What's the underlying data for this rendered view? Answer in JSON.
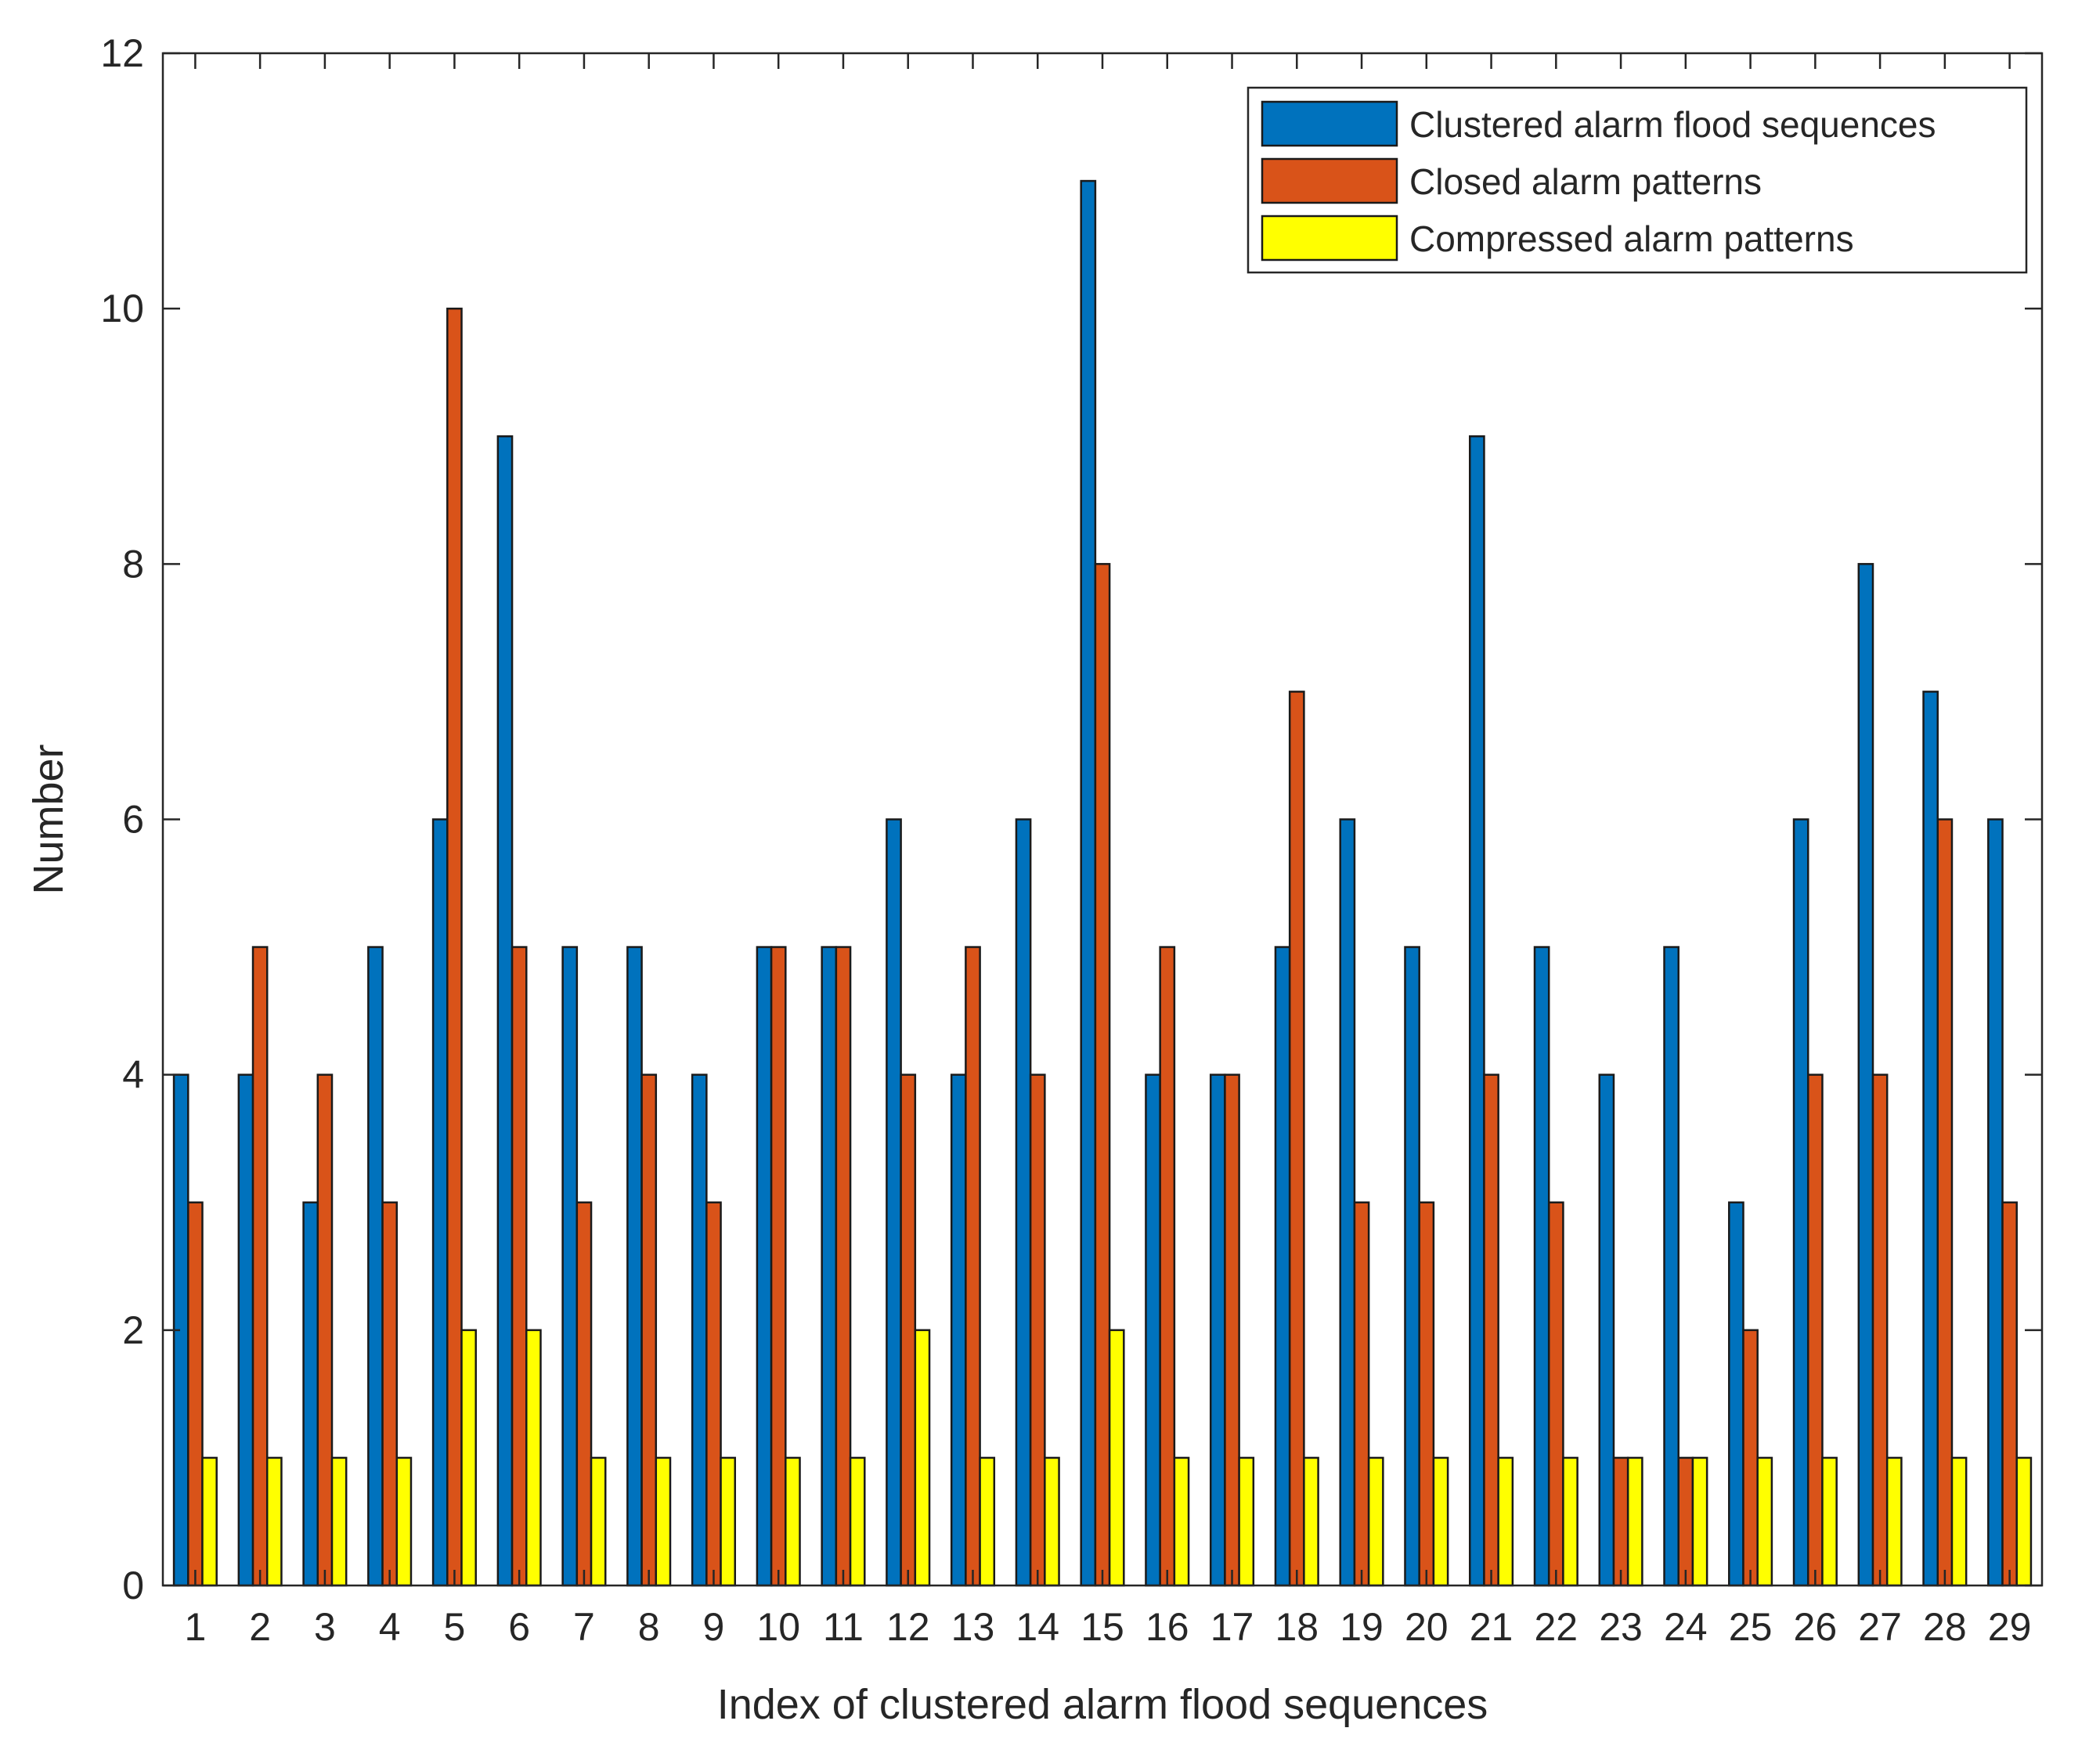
{
  "chart_data": {
    "type": "bar",
    "title": "",
    "xlabel": "Index of clustered alarm flood sequences",
    "ylabel": "Number",
    "ylim": [
      0,
      12
    ],
    "yticks": [
      0,
      2,
      4,
      6,
      8,
      10,
      12
    ],
    "legend_position": "top-right",
    "grid": false,
    "categories": [
      "1",
      "2",
      "3",
      "4",
      "5",
      "6",
      "7",
      "8",
      "9",
      "10",
      "11",
      "12",
      "13",
      "14",
      "15",
      "16",
      "17",
      "18",
      "19",
      "20",
      "21",
      "22",
      "23",
      "24",
      "25",
      "26",
      "27",
      "28",
      "29"
    ],
    "series": [
      {
        "name": "Clustered alarm flood sequences",
        "color": "#0072BD",
        "values": [
          4,
          4,
          3,
          5,
          6,
          9,
          5,
          5,
          4,
          5,
          5,
          6,
          4,
          6,
          11,
          4,
          4,
          5,
          6,
          5,
          9,
          5,
          4,
          5,
          3,
          6,
          8,
          7,
          6
        ]
      },
      {
        "name": "Closed alarm patterns",
        "color": "#D95319",
        "values": [
          3,
          5,
          4,
          3,
          10,
          5,
          3,
          4,
          3,
          5,
          5,
          4,
          5,
          4,
          8,
          5,
          4,
          7,
          3,
          3,
          4,
          3,
          1,
          1,
          2,
          4,
          4,
          6,
          3
        ]
      },
      {
        "name": "Compressed alarm patterns",
        "color": "#FFFF00",
        "values": [
          1,
          1,
          1,
          1,
          2,
          2,
          1,
          1,
          1,
          1,
          1,
          2,
          1,
          1,
          2,
          1,
          1,
          1,
          1,
          1,
          1,
          1,
          1,
          1,
          1,
          1,
          1,
          1,
          1
        ]
      }
    ]
  }
}
